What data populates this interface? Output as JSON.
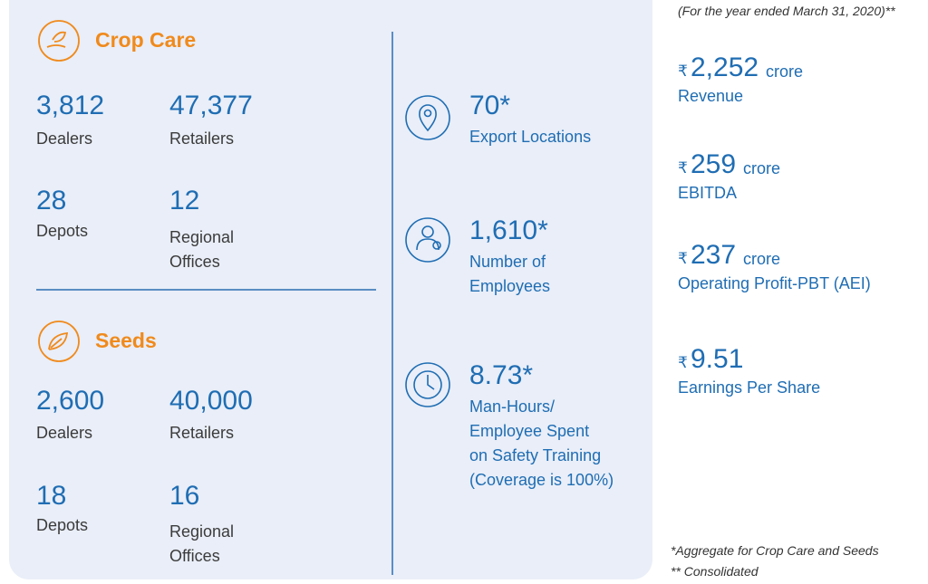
{
  "crop_care": {
    "title": "Crop Care",
    "stats": [
      {
        "value": "3,812",
        "label": [
          "Dealers"
        ]
      },
      {
        "value": "47,377",
        "label": [
          "Retailers"
        ]
      },
      {
        "value": "28",
        "label": [
          "Depots"
        ]
      },
      {
        "value": "12",
        "label": [
          "Regional",
          "Offices"
        ]
      }
    ]
  },
  "seeds": {
    "title": "Seeds",
    "stats": [
      {
        "value": "2,600",
        "label": [
          "Dealers"
        ]
      },
      {
        "value": "40,000",
        "label": [
          "Retailers"
        ]
      },
      {
        "value": "18",
        "label": [
          "Depots"
        ]
      },
      {
        "value": "16",
        "label": [
          "Regional",
          "Offices"
        ]
      }
    ]
  },
  "highlights": [
    {
      "value": "70*",
      "label": [
        "Export Locations"
      ]
    },
    {
      "value": "1,610*",
      "label": [
        "Number of",
        "Employees"
      ]
    },
    {
      "value": "8.73*",
      "label": [
        "Man-Hours/",
        "Employee Spent",
        "on Safety Training",
        "(Coverage is 100%)"
      ]
    }
  ],
  "financials": {
    "period": "(For the year ended March 31, 2020)**",
    "items": [
      {
        "currency": "₹",
        "value": "2,252",
        "unit": "crore",
        "label": "Revenue"
      },
      {
        "currency": "₹",
        "value": "259",
        "unit": "crore",
        "label": "EBITDA"
      },
      {
        "currency": "₹",
        "value": "237",
        "unit": "crore",
        "label": "Operating Profit-PBT (AEI)"
      },
      {
        "currency": "₹",
        "value": "9.51",
        "label": "Earnings Per Share"
      }
    ]
  },
  "footnotes": [
    "*Aggregate for Crop Care and Seeds",
    "** Consolidated"
  ]
}
